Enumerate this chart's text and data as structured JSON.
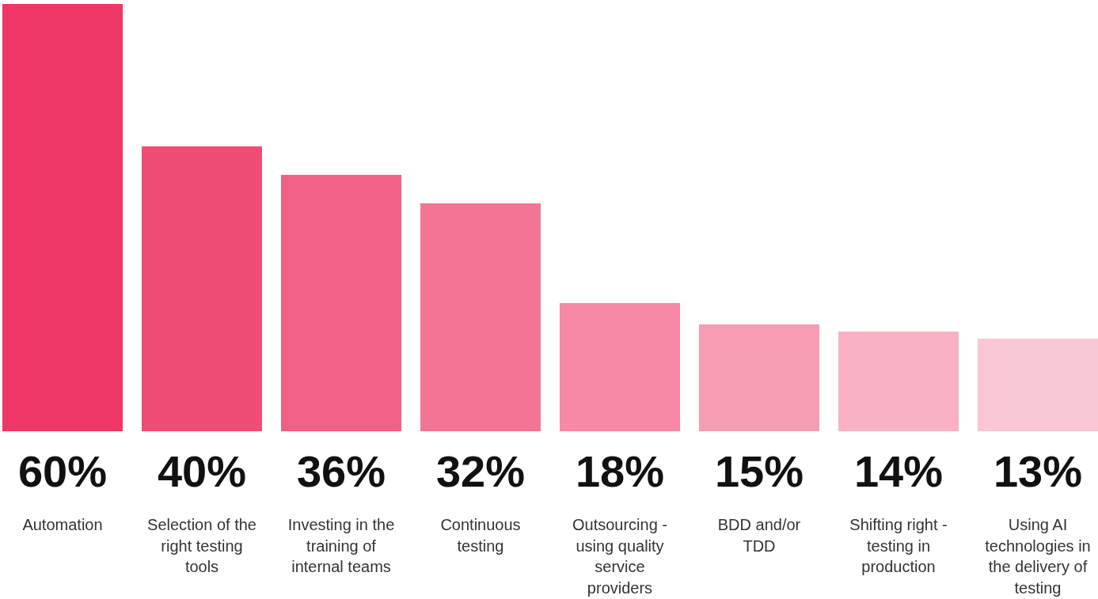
{
  "chart_data": {
    "type": "bar",
    "categories": [
      "Automation",
      "Selection of the right testing tools",
      "Investing in the training of internal teams",
      "Continuous testing",
      "Outsourcing - using quality service providers",
      "BDD and/or TDD",
      "Shifting right - testing in production",
      "Using AI technologies in the delivery of testing"
    ],
    "values": [
      60,
      40,
      36,
      32,
      18,
      15,
      14,
      13
    ],
    "colors": [
      "#ee3767",
      "#f04d76",
      "#f16185",
      "#f37596",
      "#f589a6",
      "#f69cb3",
      "#f8b2c4",
      "#f9c6d3"
    ],
    "value_labels": [
      "60%",
      "40%",
      "36%",
      "32%",
      "18%",
      "15%",
      "14%",
      "13%"
    ]
  }
}
